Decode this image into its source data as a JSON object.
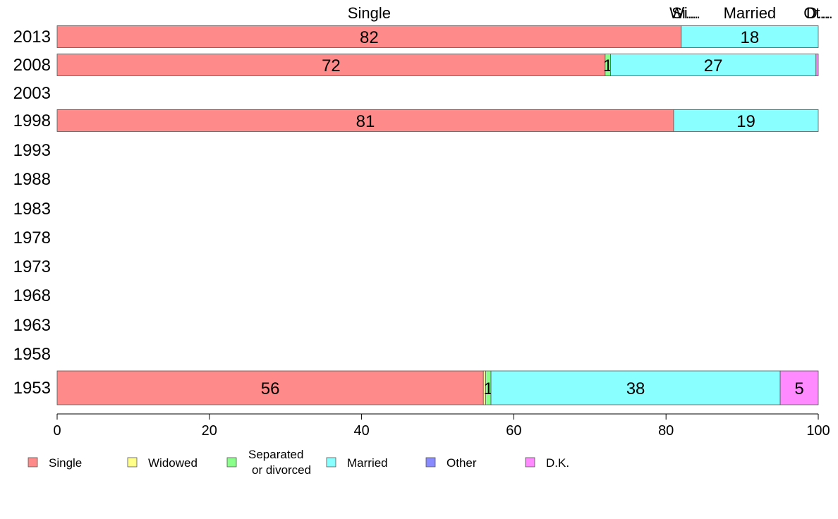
{
  "chart_data": {
    "type": "bar",
    "orientation": "horizontal",
    "stacked": true,
    "categories": [
      "2013",
      "2008",
      "2003",
      "1998",
      "1993",
      "1988",
      "1983",
      "1978",
      "1973",
      "1968",
      "1963",
      "1958",
      "1953"
    ],
    "series": [
      {
        "name": "Single",
        "color": "#FF8A8A",
        "values": [
          82,
          72,
          null,
          81,
          null,
          null,
          null,
          null,
          null,
          null,
          null,
          null,
          56
        ]
      },
      {
        "name": "Widowed",
        "color": "#FFFF8A",
        "values": [
          0,
          0,
          null,
          0,
          null,
          null,
          null,
          null,
          null,
          null,
          null,
          null,
          0.3
        ]
      },
      {
        "name": "Separated\nor divorced",
        "color": "#8AFF8A",
        "values": [
          0,
          0.7,
          null,
          0,
          null,
          null,
          null,
          null,
          null,
          null,
          null,
          null,
          0.7
        ]
      },
      {
        "name": "Married",
        "color": "#8AFFFF",
        "values": [
          18,
          27,
          null,
          19,
          null,
          null,
          null,
          null,
          null,
          null,
          null,
          null,
          38
        ]
      },
      {
        "name": "Other",
        "color": "#8A8AFF",
        "values": [
          0,
          0,
          null,
          0,
          null,
          null,
          null,
          null,
          null,
          null,
          null,
          null,
          0
        ]
      },
      {
        "name": "D.K.",
        "color": "#FF8AFF",
        "values": [
          0,
          0.3,
          null,
          0,
          null,
          null,
          null,
          null,
          null,
          null,
          null,
          null,
          5
        ]
      }
    ],
    "data_labels": [
      [
        "82",
        "",
        "",
        "18",
        "",
        ""
      ],
      [
        "72",
        "",
        "1",
        "27",
        "",
        ""
      ],
      [],
      [
        "81",
        "",
        "",
        "19",
        "",
        ""
      ],
      [],
      [],
      [],
      [],
      [],
      [],
      [],
      [],
      [
        "56",
        "",
        "1",
        "38",
        "",
        "5"
      ]
    ],
    "header_labels": [
      {
        "text": "Single",
        "at": 41
      },
      {
        "text": "Si...",
        "at": 82.5
      },
      {
        "text": "Wi...",
        "at": 82.5
      },
      {
        "text": "Married",
        "at": 91
      },
      {
        "text": "Ot...",
        "at": 100
      },
      {
        "text": "D...",
        "at": 100
      }
    ],
    "xlim": [
      0,
      100
    ],
    "xticks": [
      "0",
      "20",
      "40",
      "60",
      "80",
      "100"
    ],
    "xtick_values": [
      0,
      20,
      40,
      60,
      80,
      100
    ],
    "legend_placement": "bottom",
    "title": "",
    "xlabel": "",
    "ylabel": ""
  }
}
